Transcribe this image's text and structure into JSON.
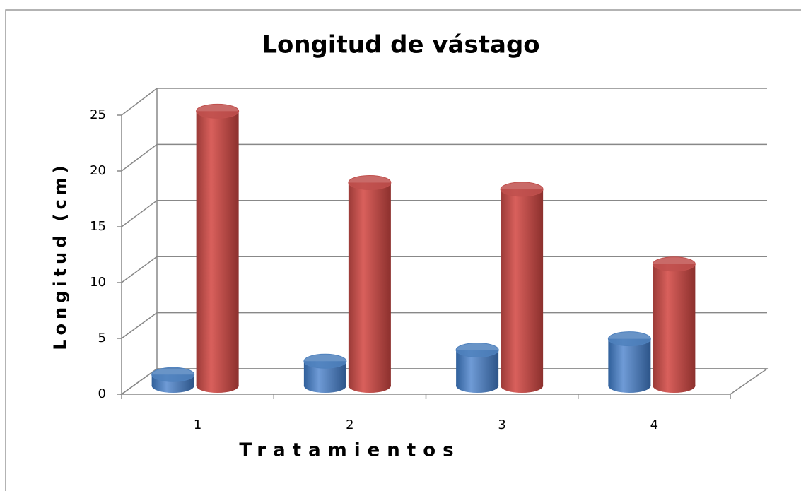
{
  "chart_data": {
    "type": "bar3d",
    "title": "Longitud de vástago",
    "x_label": "Tratamientos",
    "y_label": "Longitud (cm)",
    "categories": [
      "1",
      "2",
      "3",
      "4"
    ],
    "series": [
      {
        "color": "#4f81bd",
        "values": [
          1,
          2.2,
          3.2,
          4.2
        ]
      },
      {
        "color": "#c0504d",
        "values": [
          24.6,
          18.2,
          17.6,
          10.9
        ]
      }
    ],
    "ylim": [
      0,
      25
    ],
    "yticks": [
      0,
      5,
      10,
      15,
      20,
      25
    ],
    "grid": true
  }
}
